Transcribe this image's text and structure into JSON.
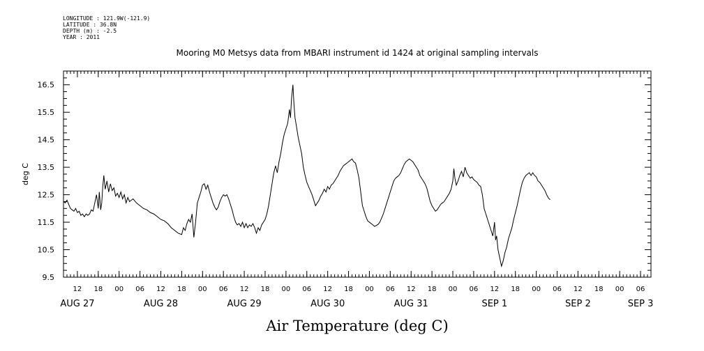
{
  "meta": {
    "longitude": "LONGITUDE : 121.9W(-121.9)",
    "latitude": "LATITUDE : 36.8N",
    "depth": "DEPTH (m) : -2.5",
    "year": "YEAR : 2011"
  },
  "chart_data": {
    "type": "line",
    "title": "Mooring M0 Metsys data from MBARI instrument id 1424 at original sampling intervals",
    "xlabel": "Air Temperature (deg C)",
    "ylabel": "deg C",
    "ylim": [
      9.5,
      17.0
    ],
    "yticks": [
      9.5,
      10.5,
      11.5,
      12.5,
      13.5,
      14.5,
      15.5,
      16.5
    ],
    "xlim_hours_from_aug27_00": [
      8,
      177
    ],
    "hour_ticks": [
      {
        "h": 12,
        "label": "12"
      },
      {
        "h": 18,
        "label": "18"
      },
      {
        "h": 24,
        "label": "00"
      },
      {
        "h": 30,
        "label": "06"
      },
      {
        "h": 36,
        "label": "12"
      },
      {
        "h": 42,
        "label": "18"
      },
      {
        "h": 48,
        "label": "00"
      },
      {
        "h": 54,
        "label": "06"
      },
      {
        "h": 60,
        "label": "12"
      },
      {
        "h": 66,
        "label": "18"
      },
      {
        "h": 72,
        "label": "00"
      },
      {
        "h": 78,
        "label": "06"
      },
      {
        "h": 84,
        "label": "12"
      },
      {
        "h": 90,
        "label": "18"
      },
      {
        "h": 96,
        "label": "00"
      },
      {
        "h": 102,
        "label": "06"
      },
      {
        "h": 108,
        "label": "12"
      },
      {
        "h": 114,
        "label": "18"
      },
      {
        "h": 120,
        "label": "00"
      },
      {
        "h": 126,
        "label": "06"
      },
      {
        "h": 132,
        "label": "12"
      },
      {
        "h": 138,
        "label": "18"
      },
      {
        "h": 144,
        "label": "00"
      },
      {
        "h": 150,
        "label": "06"
      },
      {
        "h": 156,
        "label": "12"
      },
      {
        "h": 162,
        "label": "18"
      },
      {
        "h": 168,
        "label": "00"
      },
      {
        "h": 174,
        "label": "06"
      }
    ],
    "day_labels": [
      {
        "h": 12,
        "label": "AUG 27"
      },
      {
        "h": 36,
        "label": "AUG 28"
      },
      {
        "h": 60,
        "label": "AUG 29"
      },
      {
        "h": 84,
        "label": "AUG 30"
      },
      {
        "h": 108,
        "label": "AUG 31"
      },
      {
        "h": 132,
        "label": "SEP  1"
      },
      {
        "h": 156,
        "label": "SEP  2"
      },
      {
        "h": 174,
        "label": "SEP  3"
      }
    ],
    "grid": false,
    "series": [
      {
        "color": "#000000",
        "points": [
          [
            8.0,
            12.25
          ],
          [
            8.5,
            12.2
          ],
          [
            9.0,
            12.3
          ],
          [
            9.5,
            12.15
          ],
          [
            10.0,
            12.0
          ],
          [
            10.5,
            11.95
          ],
          [
            11.0,
            11.9
          ],
          [
            11.5,
            12.0
          ],
          [
            12.0,
            11.85
          ],
          [
            12.5,
            11.9
          ],
          [
            13.0,
            11.75
          ],
          [
            13.5,
            11.8
          ],
          [
            14.0,
            11.7
          ],
          [
            14.5,
            11.8
          ],
          [
            15.0,
            11.75
          ],
          [
            15.5,
            11.8
          ],
          [
            16.0,
            11.95
          ],
          [
            16.5,
            11.9
          ],
          [
            17.0,
            12.2
          ],
          [
            17.5,
            12.5
          ],
          [
            18.0,
            12.0
          ],
          [
            18.3,
            12.6
          ],
          [
            18.7,
            11.95
          ],
          [
            19.0,
            12.2
          ],
          [
            19.3,
            12.8
          ],
          [
            19.6,
            13.2
          ],
          [
            20.0,
            12.7
          ],
          [
            20.5,
            13.0
          ],
          [
            21.0,
            12.6
          ],
          [
            21.5,
            12.9
          ],
          [
            22.0,
            12.65
          ],
          [
            22.5,
            12.75
          ],
          [
            23.0,
            12.45
          ],
          [
            23.5,
            12.55
          ],
          [
            24.0,
            12.4
          ],
          [
            24.5,
            12.6
          ],
          [
            25.0,
            12.35
          ],
          [
            25.5,
            12.5
          ],
          [
            26.0,
            12.2
          ],
          [
            26.5,
            12.4
          ],
          [
            27.0,
            12.25
          ],
          [
            28.0,
            12.35
          ],
          [
            29.0,
            12.2
          ],
          [
            30.0,
            12.1
          ],
          [
            31.0,
            12.0
          ],
          [
            32.0,
            11.95
          ],
          [
            33.0,
            11.85
          ],
          [
            34.0,
            11.8
          ],
          [
            35.0,
            11.7
          ],
          [
            36.0,
            11.6
          ],
          [
            37.0,
            11.55
          ],
          [
            38.0,
            11.45
          ],
          [
            39.0,
            11.3
          ],
          [
            40.0,
            11.2
          ],
          [
            41.0,
            11.1
          ],
          [
            42.0,
            11.05
          ],
          [
            42.5,
            11.3
          ],
          [
            43.0,
            11.2
          ],
          [
            43.5,
            11.45
          ],
          [
            44.0,
            11.6
          ],
          [
            44.5,
            11.5
          ],
          [
            45.0,
            11.8
          ],
          [
            45.5,
            10.95
          ],
          [
            46.0,
            11.5
          ],
          [
            46.5,
            12.2
          ],
          [
            47.0,
            12.4
          ],
          [
            47.5,
            12.6
          ],
          [
            48.0,
            12.85
          ],
          [
            48.5,
            12.9
          ],
          [
            49.0,
            12.7
          ],
          [
            49.5,
            12.85
          ],
          [
            50.0,
            12.6
          ],
          [
            50.5,
            12.4
          ],
          [
            51.0,
            12.2
          ],
          [
            51.5,
            12.05
          ],
          [
            52.0,
            11.95
          ],
          [
            52.5,
            12.05
          ],
          [
            53.0,
            12.25
          ],
          [
            53.5,
            12.4
          ],
          [
            54.0,
            12.5
          ],
          [
            54.5,
            12.45
          ],
          [
            55.0,
            12.5
          ],
          [
            55.5,
            12.35
          ],
          [
            56.0,
            12.15
          ],
          [
            56.5,
            11.95
          ],
          [
            57.0,
            11.7
          ],
          [
            57.5,
            11.5
          ],
          [
            58.0,
            11.4
          ],
          [
            58.5,
            11.45
          ],
          [
            59.0,
            11.35
          ],
          [
            59.5,
            11.5
          ],
          [
            60.0,
            11.3
          ],
          [
            60.5,
            11.45
          ],
          [
            61.0,
            11.3
          ],
          [
            61.5,
            11.4
          ],
          [
            62.0,
            11.35
          ],
          [
            62.5,
            11.45
          ],
          [
            63.0,
            11.3
          ],
          [
            63.5,
            11.1
          ],
          [
            64.0,
            11.3
          ],
          [
            64.5,
            11.2
          ],
          [
            65.0,
            11.4
          ],
          [
            65.5,
            11.5
          ],
          [
            66.0,
            11.6
          ],
          [
            66.5,
            11.8
          ],
          [
            67.0,
            12.1
          ],
          [
            67.5,
            12.5
          ],
          [
            68.0,
            12.9
          ],
          [
            68.5,
            13.3
          ],
          [
            69.0,
            13.55
          ],
          [
            69.5,
            13.3
          ],
          [
            70.0,
            13.7
          ],
          [
            70.5,
            14.0
          ],
          [
            71.0,
            14.4
          ],
          [
            71.5,
            14.7
          ],
          [
            72.0,
            14.9
          ],
          [
            72.5,
            15.1
          ],
          [
            73.0,
            15.6
          ],
          [
            73.3,
            15.3
          ],
          [
            73.6,
            16.0
          ],
          [
            74.0,
            16.5
          ],
          [
            74.3,
            15.8
          ],
          [
            74.6,
            15.3
          ],
          [
            75.0,
            15.0
          ],
          [
            75.5,
            14.6
          ],
          [
            76.0,
            14.3
          ],
          [
            76.5,
            14.0
          ],
          [
            77.0,
            13.5
          ],
          [
            77.5,
            13.2
          ],
          [
            78.0,
            12.95
          ],
          [
            78.5,
            12.8
          ],
          [
            79.0,
            12.65
          ],
          [
            79.5,
            12.5
          ],
          [
            80.0,
            12.3
          ],
          [
            80.5,
            12.1
          ],
          [
            81.0,
            12.2
          ],
          [
            81.5,
            12.3
          ],
          [
            82.0,
            12.45
          ],
          [
            82.5,
            12.55
          ],
          [
            83.0,
            12.7
          ],
          [
            83.5,
            12.6
          ],
          [
            84.0,
            12.8
          ],
          [
            84.5,
            12.7
          ],
          [
            85.0,
            12.85
          ],
          [
            85.5,
            12.9
          ],
          [
            86.0,
            13.0
          ],
          [
            86.5,
            13.1
          ],
          [
            87.0,
            13.2
          ],
          [
            87.5,
            13.35
          ],
          [
            88.0,
            13.45
          ],
          [
            88.5,
            13.55
          ],
          [
            89.0,
            13.6
          ],
          [
            89.5,
            13.65
          ],
          [
            90.0,
            13.7
          ],
          [
            90.5,
            13.75
          ],
          [
            91.0,
            13.8
          ],
          [
            91.5,
            13.7
          ],
          [
            92.0,
            13.65
          ],
          [
            92.5,
            13.4
          ],
          [
            93.0,
            13.1
          ],
          [
            93.5,
            12.6
          ],
          [
            94.0,
            12.1
          ],
          [
            94.5,
            11.9
          ],
          [
            95.0,
            11.7
          ],
          [
            95.5,
            11.55
          ],
          [
            96.0,
            11.5
          ],
          [
            96.5,
            11.45
          ],
          [
            97.0,
            11.4
          ],
          [
            97.5,
            11.35
          ],
          [
            98.0,
            11.38
          ],
          [
            98.5,
            11.42
          ],
          [
            99.0,
            11.5
          ],
          [
            99.5,
            11.65
          ],
          [
            100.0,
            11.8
          ],
          [
            100.5,
            12.0
          ],
          [
            101.0,
            12.2
          ],
          [
            101.5,
            12.4
          ],
          [
            102.0,
            12.6
          ],
          [
            102.5,
            12.8
          ],
          [
            103.0,
            13.0
          ],
          [
            103.5,
            13.1
          ],
          [
            104.0,
            13.15
          ],
          [
            104.5,
            13.2
          ],
          [
            105.0,
            13.3
          ],
          [
            105.5,
            13.45
          ],
          [
            106.0,
            13.6
          ],
          [
            106.5,
            13.7
          ],
          [
            107.0,
            13.75
          ],
          [
            107.5,
            13.8
          ],
          [
            108.0,
            13.75
          ],
          [
            108.5,
            13.7
          ],
          [
            109.0,
            13.6
          ],
          [
            109.5,
            13.5
          ],
          [
            110.0,
            13.4
          ],
          [
            110.5,
            13.2
          ],
          [
            111.0,
            13.1
          ],
          [
            111.5,
            13.0
          ],
          [
            112.0,
            12.9
          ],
          [
            112.5,
            12.75
          ],
          [
            113.0,
            12.5
          ],
          [
            113.5,
            12.25
          ],
          [
            114.0,
            12.1
          ],
          [
            114.5,
            12.0
          ],
          [
            115.0,
            11.9
          ],
          [
            115.5,
            11.95
          ],
          [
            116.0,
            12.05
          ],
          [
            116.5,
            12.15
          ],
          [
            117.0,
            12.2
          ],
          [
            117.5,
            12.25
          ],
          [
            118.0,
            12.35
          ],
          [
            118.5,
            12.45
          ],
          [
            119.0,
            12.55
          ],
          [
            119.5,
            12.7
          ],
          [
            120.0,
            13.0
          ],
          [
            120.3,
            13.45
          ],
          [
            120.6,
            13.1
          ],
          [
            121.0,
            12.85
          ],
          [
            121.5,
            13.0
          ],
          [
            122.0,
            13.2
          ],
          [
            122.5,
            13.35
          ],
          [
            123.0,
            13.15
          ],
          [
            123.5,
            13.5
          ],
          [
            124.0,
            13.3
          ],
          [
            124.5,
            13.2
          ],
          [
            125.0,
            13.1
          ],
          [
            125.5,
            13.15
          ],
          [
            126.0,
            13.05
          ],
          [
            126.5,
            13.0
          ],
          [
            127.0,
            12.95
          ],
          [
            127.5,
            12.85
          ],
          [
            128.0,
            12.8
          ],
          [
            128.5,
            12.5
          ],
          [
            129.0,
            12.0
          ],
          [
            129.5,
            11.8
          ],
          [
            130.0,
            11.6
          ],
          [
            130.5,
            11.4
          ],
          [
            131.0,
            11.2
          ],
          [
            131.5,
            11.0
          ],
          [
            132.0,
            11.5
          ],
          [
            132.3,
            10.85
          ],
          [
            132.6,
            11.0
          ],
          [
            133.0,
            10.5
          ],
          [
            133.5,
            10.2
          ],
          [
            134.0,
            9.9
          ],
          [
            134.5,
            10.1
          ],
          [
            135.0,
            10.4
          ],
          [
            135.5,
            10.6
          ],
          [
            136.0,
            10.9
          ],
          [
            136.5,
            11.1
          ],
          [
            137.0,
            11.3
          ],
          [
            137.5,
            11.6
          ],
          [
            138.0,
            11.85
          ],
          [
            138.5,
            12.1
          ],
          [
            139.0,
            12.4
          ],
          [
            139.5,
            12.7
          ],
          [
            140.0,
            12.95
          ],
          [
            140.5,
            13.1
          ],
          [
            141.0,
            13.2
          ],
          [
            141.5,
            13.25
          ],
          [
            142.0,
            13.3
          ],
          [
            142.5,
            13.2
          ],
          [
            143.0,
            13.3
          ],
          [
            143.5,
            13.2
          ],
          [
            144.0,
            13.15
          ],
          [
            144.5,
            13.0
          ],
          [
            145.0,
            12.95
          ],
          [
            145.5,
            12.85
          ],
          [
            146.0,
            12.75
          ],
          [
            146.5,
            12.65
          ],
          [
            147.0,
            12.5
          ],
          [
            147.5,
            12.38
          ],
          [
            148.0,
            12.32
          ]
        ]
      }
    ]
  }
}
